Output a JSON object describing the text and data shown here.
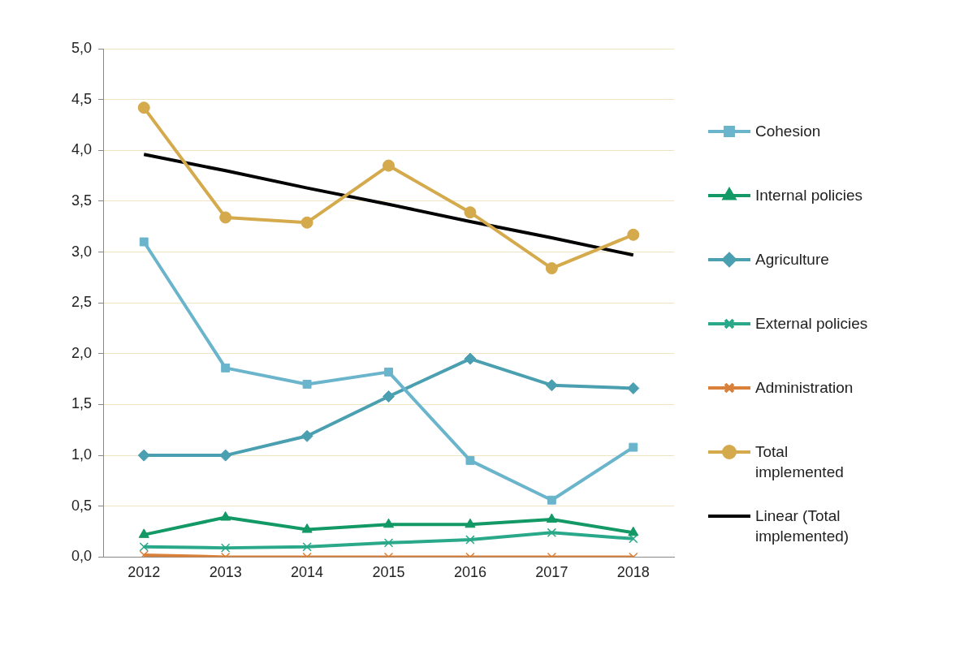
{
  "chart_data": {
    "type": "line",
    "categories": [
      "2012",
      "2013",
      "2014",
      "2015",
      "2016",
      "2017",
      "2018"
    ],
    "ylim": [
      0,
      5
    ],
    "yticks": [
      {
        "value": 0,
        "label": "0,0"
      },
      {
        "value": 0.5,
        "label": "0,5"
      },
      {
        "value": 1,
        "label": "1,0"
      },
      {
        "value": 1.5,
        "label": "1,5"
      },
      {
        "value": 2,
        "label": "2,0"
      },
      {
        "value": 2.5,
        "label": "2,5"
      },
      {
        "value": 3,
        "label": "3,0"
      },
      {
        "value": 3.5,
        "label": "3,5"
      },
      {
        "value": 4,
        "label": "4,0"
      },
      {
        "value": 4.5,
        "label": "4,5"
      },
      {
        "value": 5,
        "label": "5,0"
      }
    ],
    "grid": "y",
    "legend": "right",
    "line_style": "solid",
    "series": [
      {
        "name": "Cohesion",
        "color": "#6ab4cc",
        "marker": "square",
        "values": [
          3.1,
          1.86,
          1.7,
          1.82,
          0.95,
          0.56,
          1.08
        ]
      },
      {
        "name": "Internal policies",
        "color": "#129966",
        "marker": "triangle",
        "values": [
          0.22,
          0.39,
          0.27,
          0.32,
          0.32,
          0.37,
          0.24
        ]
      },
      {
        "name": "Agriculture",
        "color": "#4a9fb0",
        "marker": "diamond",
        "values": [
          1.0,
          1.0,
          1.19,
          1.58,
          1.95,
          1.69,
          1.66
        ]
      },
      {
        "name": "External policies",
        "color": "#2aa88a",
        "marker": "cross",
        "values": [
          0.1,
          0.09,
          0.1,
          0.14,
          0.17,
          0.24,
          0.18
        ]
      },
      {
        "name": "Administration",
        "color": "#d9803a",
        "marker": "cross",
        "values": [
          0.02,
          0,
          0,
          0,
          0,
          0,
          0
        ]
      },
      {
        "name": "Total implemented",
        "color": "#d4aa4c",
        "marker": "circle",
        "values": [
          4.42,
          3.34,
          3.29,
          3.85,
          3.39,
          2.84,
          3.17
        ]
      },
      {
        "name": "Linear (Total implemented)",
        "color": "#000000",
        "marker": "none",
        "values": [
          3.96,
          3.8,
          3.63,
          3.47,
          3.3,
          3.14,
          2.97
        ]
      }
    ]
  }
}
